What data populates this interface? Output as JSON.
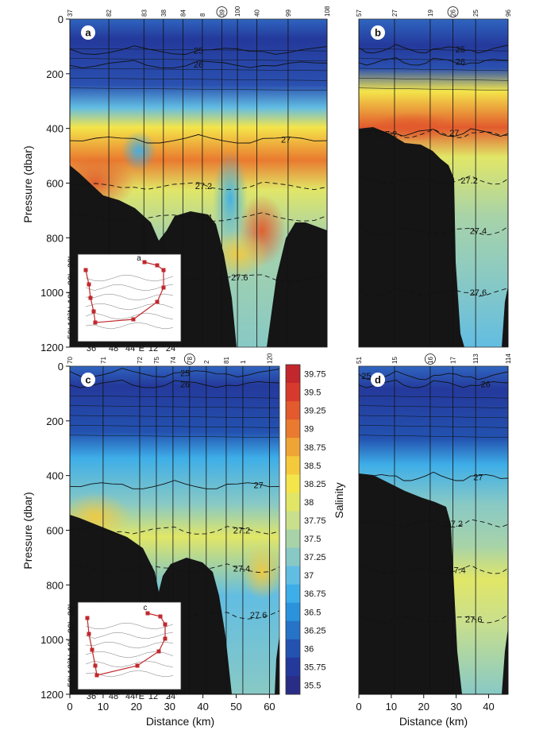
{
  "ylabel": "Pressure (dbar)",
  "xlabel": "Distance (km)",
  "colorbar_label": "Salinity",
  "inset_axes": {
    "lat": [
      "50'",
      "12°N",
      "10'",
      "20'",
      "30'"
    ],
    "lon": [
      "36'",
      "48'",
      "44°E",
      "12'",
      "24'"
    ]
  },
  "chart_data": [
    {
      "panel": "a",
      "type": "heatmap",
      "ylim": [
        1200,
        0
      ],
      "xlim": [
        0,
        63
      ],
      "stations": [
        {
          "x": 0,
          "label": "37"
        },
        {
          "x": 10,
          "label": "82"
        },
        {
          "x": 19,
          "label": "83"
        },
        {
          "x": 24,
          "label": "38"
        },
        {
          "x": 29,
          "label": "84"
        },
        {
          "x": 34,
          "label": "8"
        },
        {
          "x": 39,
          "label": "39",
          "circled": true
        },
        {
          "x": 43,
          "label": "100"
        },
        {
          "x": 48,
          "label": "40"
        },
        {
          "x": 56,
          "label": "99"
        },
        {
          "x": 66,
          "label": "108"
        }
      ],
      "isopycnals": [
        {
          "value": "25",
          "p": 115
        },
        {
          "value": "26",
          "p": 165
        },
        {
          "value": "27",
          "p": 440
        },
        {
          "value": "27.2",
          "p": 610
        },
        {
          "value": "27.4",
          "p": 725
        },
        {
          "value": "27.6",
          "p": 945
        }
      ],
      "yticks": [
        0,
        200,
        400,
        600,
        800,
        1000,
        1200
      ]
    },
    {
      "panel": "b",
      "type": "heatmap",
      "ylim": [
        1200,
        0
      ],
      "xlim": [
        0,
        46
      ],
      "stations": [
        {
          "x": 0,
          "label": "57"
        },
        {
          "x": 11,
          "label": "27"
        },
        {
          "x": 22,
          "label": "19"
        },
        {
          "x": 29,
          "label": "26",
          "circled": true
        },
        {
          "x": 36,
          "label": "25"
        },
        {
          "x": 46,
          "label": "96"
        }
      ],
      "isopycnals": [
        {
          "value": "25",
          "p": 110
        },
        {
          "value": "26",
          "p": 155
        },
        {
          "value": "27.2",
          "p": 420
        },
        {
          "value": "27",
          "p": 415
        },
        {
          "value": "27.2",
          "p": 590
        },
        {
          "value": "27.4",
          "p": 775
        },
        {
          "value": "27.6",
          "p": 1000
        }
      ]
    },
    {
      "panel": "c",
      "type": "heatmap",
      "ylim": [
        1200,
        0
      ],
      "xlim": [
        0,
        63
      ],
      "xticks": [
        0,
        10,
        20,
        30,
        40,
        50,
        60
      ],
      "stations": [
        {
          "x": 0,
          "label": "70"
        },
        {
          "x": 10,
          "label": "71"
        },
        {
          "x": 21,
          "label": "72"
        },
        {
          "x": 26,
          "label": "75"
        },
        {
          "x": 31,
          "label": "74"
        },
        {
          "x": 36,
          "label": "78",
          "circled": true
        },
        {
          "x": 41,
          "label": "2"
        },
        {
          "x": 47,
          "label": "81"
        },
        {
          "x": 52,
          "label": "1"
        },
        {
          "x": 60,
          "label": "120"
        }
      ],
      "isopycnals": [
        {
          "value": "25",
          "p": 25
        },
        {
          "value": "26",
          "p": 65
        },
        {
          "value": "27",
          "p": 435
        },
        {
          "value": "27.2",
          "p": 600
        },
        {
          "value": "27.4",
          "p": 740
        },
        {
          "value": "27.6",
          "p": 910
        }
      ],
      "yticks": [
        0,
        200,
        400,
        600,
        800,
        1000,
        1200
      ]
    },
    {
      "panel": "d",
      "type": "heatmap",
      "ylim": [
        1200,
        0
      ],
      "xlim": [
        0,
        46
      ],
      "xticks": [
        0,
        10,
        20,
        30,
        40
      ],
      "stations": [
        {
          "x": 0,
          "label": "51"
        },
        {
          "x": 11,
          "label": "15"
        },
        {
          "x": 22,
          "label": "16",
          "circled": true
        },
        {
          "x": 29,
          "label": "17"
        },
        {
          "x": 36,
          "label": "113"
        },
        {
          "x": 46,
          "label": "114"
        }
      ],
      "isopycnals": [
        {
          "value": "25",
          "p": 35
        },
        {
          "value": "26",
          "p": 65
        },
        {
          "value": "27",
          "p": 405
        },
        {
          "value": "27.2",
          "p": 575
        },
        {
          "value": "27.4",
          "p": 745
        },
        {
          "value": "27.6",
          "p": 925
        }
      ]
    },
    {
      "type": "colorbar",
      "label": "Salinity",
      "ticks": [
        "39.75",
        "39.5",
        "39.25",
        "39",
        "38.75",
        "38.5",
        "38.25",
        "38",
        "37.75",
        "37.5",
        "37.25",
        "37",
        "36.75",
        "36.5",
        "36.25",
        "36",
        "35.75",
        "35.5"
      ],
      "colors": [
        "#c2272d",
        "#d73a2c",
        "#e25a2d",
        "#e97a2f",
        "#efa535",
        "#f5c93c",
        "#f4e54b",
        "#e1e667",
        "#c9df8c",
        "#a8d3a8",
        "#88c9c5",
        "#62bde2",
        "#3eaee8",
        "#2a93dc",
        "#2673c7",
        "#2352b0",
        "#23399b",
        "#2a2d86"
      ]
    }
  ]
}
